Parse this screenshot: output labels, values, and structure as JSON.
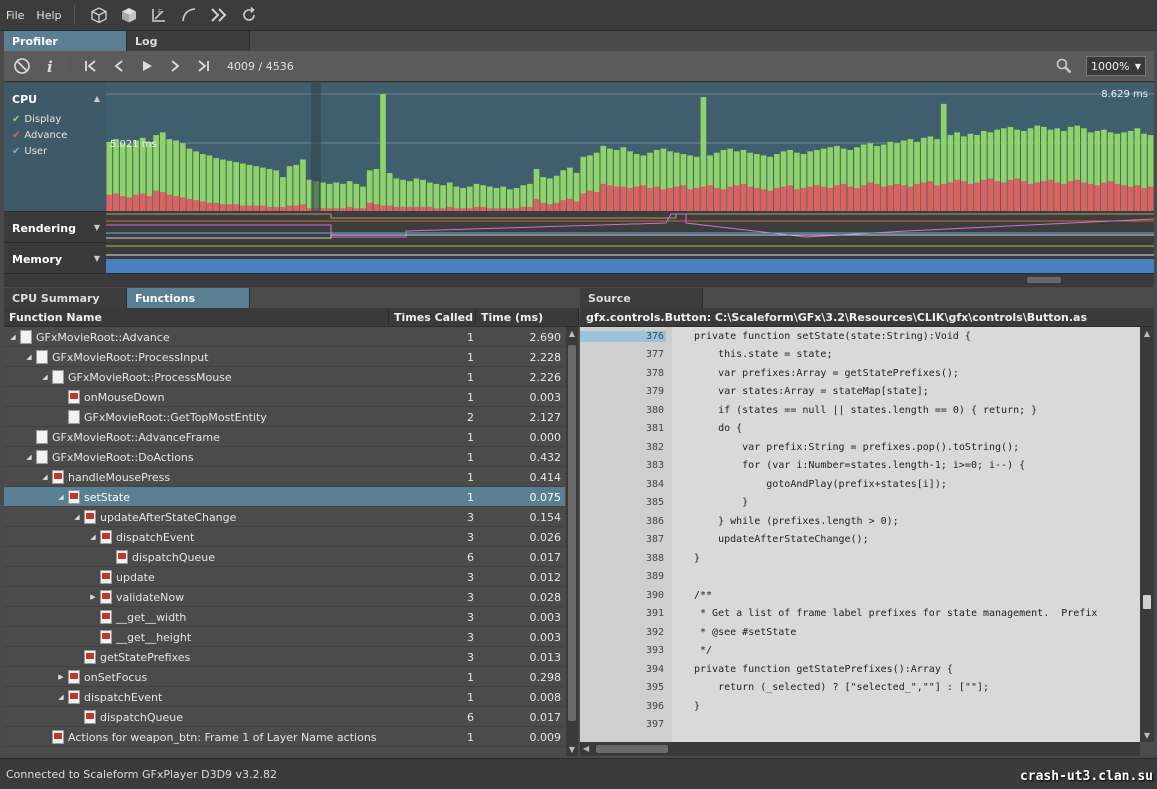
{
  "menu": {
    "file": "File",
    "help": "Help"
  },
  "toolbar_icons": [
    "cube-wire-icon",
    "cube-solid-icon",
    "edge-icon",
    "curve-icon",
    "double-chevron-icon",
    "refresh-icon"
  ],
  "top_tabs": [
    {
      "label": "Profiler",
      "active": true
    },
    {
      "label": "Log",
      "active": false
    }
  ],
  "playback": {
    "frame_counter": "4009 / 4536",
    "zoom": "1000%"
  },
  "graph": {
    "sections": {
      "cpu": "CPU",
      "rendering": "Rendering",
      "memory": "Memory"
    },
    "legend": [
      {
        "label": "Display",
        "color": "#8fd36a"
      },
      {
        "label": "Advance",
        "color": "#e06060"
      },
      {
        "label": "User",
        "color": "#6fb3e0"
      }
    ],
    "max_label": "8.629 ms",
    "mid_label": "5.021 ms"
  },
  "chart_data": {
    "type": "bar",
    "title": "CPU",
    "ylim": [
      0,
      8.629
    ],
    "series": [
      {
        "name": "Display",
        "values": [
          5.1,
          5.3,
          5.0,
          4.9,
          5.2,
          5.4,
          5.1,
          5.6,
          5.8,
          5.3,
          5.2,
          5.0,
          4.6,
          4.4,
          4.2,
          4.1,
          3.9,
          3.8,
          3.7,
          3.6,
          3.5,
          3.4,
          3.3,
          3.2,
          3.1,
          3.0,
          2.5,
          3.3,
          3.4,
          3.8,
          2.3,
          2.2,
          2.1,
          2.0,
          2.1,
          2.0,
          2.2,
          2.0,
          1.8,
          3.0,
          3.1,
          2.6,
          2.8,
          2.4,
          2.3,
          2.2,
          2.4,
          2.3,
          2.1,
          2.0,
          1.9,
          2.1,
          1.8,
          1.7,
          1.8,
          2.0,
          1.9,
          1.8,
          1.7,
          1.8,
          1.6,
          1.7,
          1.9,
          2.0,
          3.1,
          2.5,
          2.4,
          2.6,
          3.0,
          3.2,
          2.8,
          4.0,
          4.1,
          4.3,
          4.8,
          4.6,
          4.5,
          4.7,
          4.4,
          4.2,
          4.1,
          4.3,
          4.5,
          4.6,
          4.4,
          4.3,
          4.2,
          4.1,
          4.0,
          4.2,
          4.1,
          4.3,
          4.5,
          4.6,
          4.4,
          4.5,
          4.3,
          4.2,
          4.1,
          4.0,
          4.2,
          4.4,
          4.5,
          4.3,
          4.2,
          4.4,
          4.5,
          4.6,
          4.7,
          4.8,
          4.6,
          4.5,
          4.7,
          4.9,
          5.0,
          4.8,
          4.9,
          5.1,
          5.0,
          5.2,
          5.3,
          5.1,
          5.4,
          5.5,
          5.3,
          5.4,
          5.6,
          5.8,
          5.5,
          5.7,
          5.6,
          5.9,
          5.8,
          6.0,
          6.1,
          6.2,
          6.0,
          5.9,
          6.1,
          6.3,
          6.2,
          6.0,
          6.1,
          5.9,
          6.2,
          6.3,
          6.1,
          5.8,
          5.9,
          6.0,
          5.8,
          5.7,
          5.8,
          5.9,
          6.1,
          5.7,
          5.6
        ]
      },
      {
        "name": "Advance",
        "values": [
          1.2,
          1.3,
          1.1,
          1.0,
          1.2,
          1.3,
          1.1,
          1.5,
          1.4,
          1.2,
          1.1,
          1.0,
          0.9,
          0.8,
          0.7,
          0.6,
          0.6,
          0.5,
          0.5,
          0.5,
          0.4,
          0.4,
          0.4,
          0.4,
          0.3,
          0.3,
          0.3,
          0.4,
          0.4,
          0.5,
          0.2,
          0.2,
          0.2,
          0.2,
          0.2,
          0.2,
          0.3,
          0.2,
          0.2,
          0.6,
          0.5,
          0.4,
          0.4,
          0.3,
          0.3,
          0.3,
          0.3,
          0.3,
          0.3,
          0.2,
          0.2,
          0.3,
          0.2,
          0.2,
          0.2,
          0.3,
          0.3,
          0.2,
          0.2,
          0.2,
          0.2,
          0.2,
          0.3,
          0.3,
          0.9,
          0.6,
          0.5,
          0.6,
          0.8,
          0.9,
          0.7,
          1.3,
          1.5,
          1.4,
          2.0,
          1.9,
          1.8,
          1.8,
          1.7,
          1.8,
          1.9,
          1.7,
          1.8,
          1.6,
          1.7,
          1.8,
          1.9,
          1.6,
          1.7,
          1.8,
          1.9,
          1.7,
          1.6,
          1.8,
          1.9,
          2.0,
          1.8,
          1.7,
          1.6,
          1.5,
          1.7,
          1.8,
          1.9,
          1.6,
          1.7,
          1.8,
          1.9,
          1.8,
          1.7,
          1.9,
          2.0,
          1.8,
          1.7,
          1.9,
          2.1,
          2.0,
          1.8,
          1.9,
          2.0,
          1.9,
          1.8,
          2.0,
          2.1,
          2.2,
          1.9,
          2.0,
          2.1,
          2.3,
          2.2,
          2.0,
          2.1,
          2.3,
          2.4,
          2.2,
          2.1,
          2.3,
          2.4,
          2.2,
          2.0,
          2.1,
          2.2,
          2.3,
          2.1,
          2.0,
          2.2,
          2.3,
          2.1,
          2.0,
          1.9,
          2.1,
          2.2,
          2.0,
          1.9,
          1.8,
          1.9,
          1.7,
          1.8
        ]
      }
    ],
    "spikes": [
      {
        "index": 41,
        "display": 8.629
      },
      {
        "index": 89,
        "display": 8.4
      },
      {
        "index": 125,
        "display": 7.9
      }
    ]
  },
  "left_panel": {
    "tabs": [
      {
        "label": "CPU Summary",
        "active": false
      },
      {
        "label": "Functions",
        "active": true
      }
    ],
    "columns": {
      "name": "Function Name",
      "count": "Times Called",
      "time": "Time (ms)"
    },
    "rows": [
      {
        "name": "GFxMovieRoot::Advance",
        "level": 0,
        "tri": "down",
        "icon": "doc",
        "count": "1",
        "time": "2.690"
      },
      {
        "name": "GFxMovieRoot::ProcessInput",
        "level": 1,
        "tri": "down",
        "icon": "doc",
        "count": "1",
        "time": "2.228"
      },
      {
        "name": "GFxMovieRoot::ProcessMouse",
        "level": 2,
        "tri": "down",
        "icon": "doc",
        "count": "1",
        "time": "2.226"
      },
      {
        "name": "onMouseDown",
        "level": 3,
        "tri": "",
        "icon": "as",
        "count": "1",
        "time": "0.003"
      },
      {
        "name": "GFxMovieRoot::GetTopMostEntity",
        "level": 3,
        "tri": "",
        "icon": "doc",
        "count": "2",
        "time": "2.127"
      },
      {
        "name": "GFxMovieRoot::AdvanceFrame",
        "level": 1,
        "tri": "",
        "icon": "doc",
        "count": "1",
        "time": "0.000"
      },
      {
        "name": "GFxMovieRoot::DoActions",
        "level": 1,
        "tri": "down",
        "icon": "doc",
        "count": "1",
        "time": "0.432"
      },
      {
        "name": "handleMousePress",
        "level": 2,
        "tri": "down",
        "icon": "as",
        "count": "1",
        "time": "0.414"
      },
      {
        "name": "setState",
        "level": 3,
        "tri": "down",
        "icon": "as",
        "count": "1",
        "time": "0.075",
        "selected": true
      },
      {
        "name": "updateAfterStateChange",
        "level": 4,
        "tri": "down",
        "icon": "as",
        "count": "3",
        "time": "0.154"
      },
      {
        "name": "dispatchEvent",
        "level": 5,
        "tri": "down",
        "icon": "as",
        "count": "3",
        "time": "0.026"
      },
      {
        "name": "dispatchQueue",
        "level": 6,
        "tri": "",
        "icon": "as",
        "count": "6",
        "time": "0.017"
      },
      {
        "name": "update",
        "level": 5,
        "tri": "",
        "icon": "as",
        "count": "3",
        "time": "0.012"
      },
      {
        "name": "validateNow",
        "level": 5,
        "tri": "right",
        "icon": "as",
        "count": "3",
        "time": "0.028"
      },
      {
        "name": "__get__width",
        "level": 5,
        "tri": "",
        "icon": "as",
        "count": "3",
        "time": "0.003"
      },
      {
        "name": "__get__height",
        "level": 5,
        "tri": "",
        "icon": "as",
        "count": "3",
        "time": "0.003"
      },
      {
        "name": "getStatePrefixes",
        "level": 4,
        "tri": "",
        "icon": "as",
        "count": "3",
        "time": "0.013"
      },
      {
        "name": "onSetFocus",
        "level": 3,
        "tri": "right",
        "icon": "as",
        "count": "1",
        "time": "0.298"
      },
      {
        "name": "dispatchEvent",
        "level": 3,
        "tri": "down",
        "icon": "as",
        "count": "1",
        "time": "0.008"
      },
      {
        "name": "dispatchQueue",
        "level": 4,
        "tri": "",
        "icon": "as",
        "count": "6",
        "time": "0.017"
      },
      {
        "name": "Actions for weapon_btn: Frame 1 of Layer Name actions",
        "level": 2,
        "tri": "",
        "icon": "as",
        "count": "1",
        "time": "0.009"
      }
    ]
  },
  "right_panel": {
    "tab": "Source",
    "path": "gfx.controls.Button: C:\\Scaleform\\GFx\\3.2\\Resources\\CLIK\\gfx\\controls\\Button.as",
    "lines": [
      {
        "n": "376",
        "code": "private function setState(state:String):Void {",
        "current": true
      },
      {
        "n": "377",
        "code": "    this.state = state;"
      },
      {
        "n": "378",
        "code": "    var prefixes:Array = getStatePrefixes();"
      },
      {
        "n": "379",
        "code": "    var states:Array = stateMap[state];"
      },
      {
        "n": "380",
        "code": "    if (states == null || states.length == 0) { return; }"
      },
      {
        "n": "381",
        "code": "    do {"
      },
      {
        "n": "382",
        "code": "        var prefix:String = prefixes.pop().toString();"
      },
      {
        "n": "383",
        "code": "        for (var i:Number=states.length-1; i>=0; i--) {"
      },
      {
        "n": "384",
        "code": "            gotoAndPlay(prefix+states[i]);"
      },
      {
        "n": "385",
        "code": "        }"
      },
      {
        "n": "386",
        "code": "    } while (prefixes.length > 0);"
      },
      {
        "n": "387",
        "code": "    updateAfterStateChange();"
      },
      {
        "n": "388",
        "code": "}"
      },
      {
        "n": "389",
        "code": ""
      },
      {
        "n": "390",
        "code": "/**"
      },
      {
        "n": "391",
        "code": " * Get a list of frame label prefixes for state management.  Prefix"
      },
      {
        "n": "392",
        "code": " * @see #setState"
      },
      {
        "n": "393",
        "code": " */"
      },
      {
        "n": "394",
        "code": "private function getStatePrefixes():Array {"
      },
      {
        "n": "395",
        "code": "    return (_selected) ? [\"selected_\",\"\"] : [\"\"];"
      },
      {
        "n": "396",
        "code": "}"
      },
      {
        "n": "397",
        "code": ""
      }
    ]
  },
  "status": {
    "text": "Connected to Scaleform GFxPlayer D3D9 v3.2.82",
    "watermark": "crash-ut3.clan.su"
  }
}
